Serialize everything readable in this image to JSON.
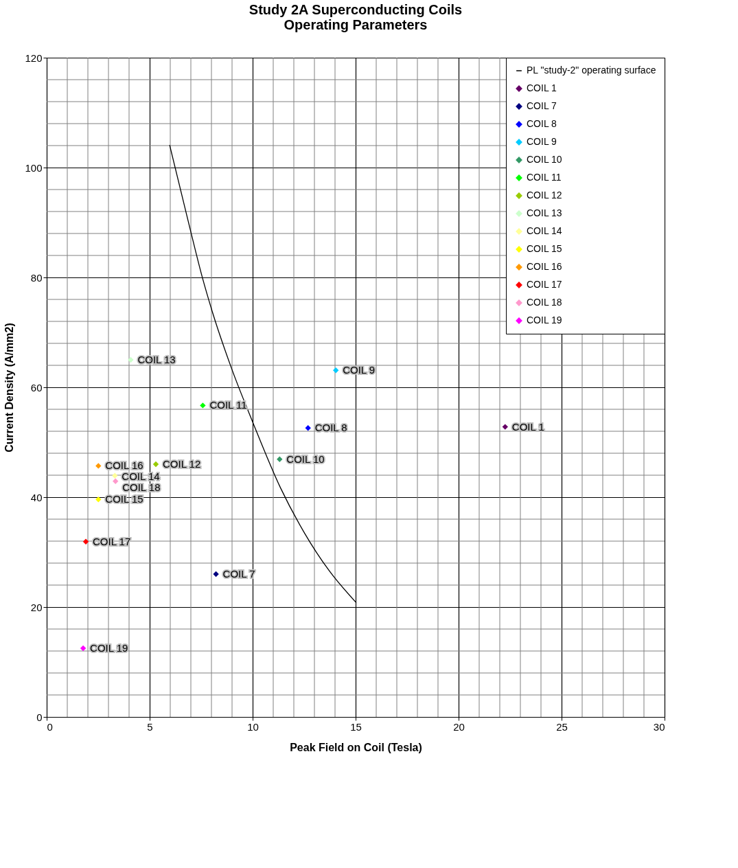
{
  "chart_data": {
    "type": "scatter",
    "title": [
      "Study 2A Superconducting Coils",
      "Operating Parameters"
    ],
    "xlabel": "Peak Field on Coil (Tesla)",
    "ylabel": "Current Density (A/mm2)",
    "xlim": [
      0,
      30
    ],
    "ylim": [
      0,
      120
    ],
    "xticks": [
      0,
      5,
      10,
      15,
      20,
      25,
      30
    ],
    "yticks": [
      0,
      20,
      40,
      60,
      80,
      100,
      120
    ],
    "grid": true,
    "legend": "top right",
    "marker": "diamond",
    "series": [
      {
        "name": "PL \"study-2\" operating surface",
        "type": "line",
        "marker": "none",
        "line_style": "solid",
        "color": "#000000",
        "x": [
          5.97,
          6.9,
          7.55,
          8.03,
          9.0,
          10.0,
          11.34,
          12.53,
          13.72,
          15.03
        ],
        "values": [
          104.1,
          89.8,
          80.1,
          73.9,
          63.2,
          53.7,
          41.8,
          33.4,
          26.6,
          20.8
        ]
      },
      {
        "name": "COIL 1",
        "color": "#660066",
        "x": [
          22.26
        ],
        "values": [
          52.8
        ]
      },
      {
        "name": "COIL 7",
        "color": "#000080",
        "x": [
          8.22
        ],
        "values": [
          26.0
        ]
      },
      {
        "name": "COIL 8",
        "color": "#0000ff",
        "x": [
          12.69
        ],
        "values": [
          52.6
        ]
      },
      {
        "name": "COIL 9",
        "color": "#00ccff",
        "x": [
          14.04
        ],
        "values": [
          63.1
        ]
      },
      {
        "name": "COIL 10",
        "color": "#339966",
        "x": [
          11.31
        ],
        "values": [
          46.9
        ]
      },
      {
        "name": "COIL 11",
        "color": "#00ff00",
        "x": [
          7.58
        ],
        "values": [
          56.7
        ]
      },
      {
        "name": "COIL 12",
        "color": "#99cc00",
        "x": [
          5.3
        ],
        "values": [
          46.0
        ]
      },
      {
        "name": "COIL 13",
        "color": "#ccffcc",
        "x": [
          4.08
        ],
        "values": [
          65.0
        ]
      },
      {
        "name": "COIL 14",
        "color": "#ffff99",
        "x": [
          3.31
        ],
        "values": [
          43.9
        ]
      },
      {
        "name": "COIL 15",
        "color": "#ffff00",
        "x": [
          2.51
        ],
        "values": [
          39.6
        ]
      },
      {
        "name": "COIL 16",
        "color": "#ff9900",
        "x": [
          2.51
        ],
        "values": [
          45.7
        ]
      },
      {
        "name": "COIL 17",
        "color": "#ff0000",
        "x": [
          1.9
        ],
        "values": [
          31.9
        ]
      },
      {
        "name": "COIL 18",
        "color": "#ff99cc",
        "x": [
          3.34
        ],
        "values": [
          42.9
        ]
      },
      {
        "name": "COIL 19",
        "color": "#ff00ff",
        "x": [
          1.77
        ],
        "values": [
          12.5
        ]
      }
    ]
  }
}
